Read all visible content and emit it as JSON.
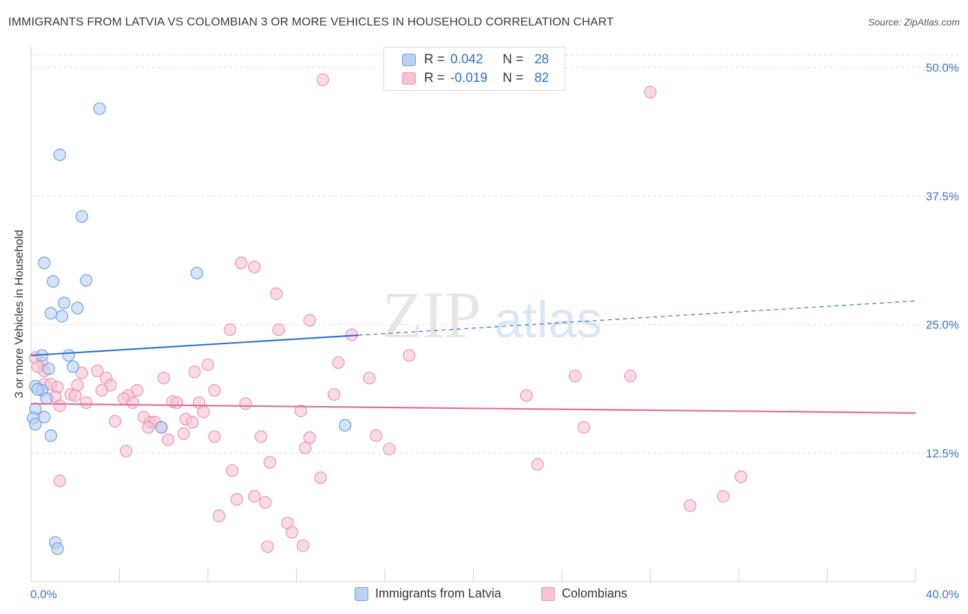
{
  "title": "IMMIGRANTS FROM LATVIA VS COLOMBIAN 3 OR MORE VEHICLES IN HOUSEHOLD CORRELATION CHART",
  "source": "Source: ZipAtlas.com",
  "watermark": {
    "zip": "ZIP",
    "atlas": "atlas"
  },
  "legend": {
    "rows": [
      {
        "r_label": "R =",
        "r_value": "0.042",
        "n_label": "N =",
        "n_value": "28"
      },
      {
        "r_label": "R =",
        "r_value": "-0.019",
        "n_label": "N =",
        "n_value": "82"
      }
    ]
  },
  "bottom_legend": {
    "series1": "Immigrants from Latvia",
    "series2": "Colombians"
  },
  "colors": {
    "blue_fill": "#b9d1f3",
    "blue_stroke": "#6f9ee0",
    "blue_line": "#2f6fce",
    "pink_fill": "#f7c3d3",
    "pink_stroke": "#e893ae",
    "pink_line": "#e06b97",
    "axis_text": "#3b74c6",
    "grid": "#dcdcdc"
  },
  "chart_data": {
    "type": "scatter",
    "title": "IMMIGRANTS FROM LATVIA VS COLOMBIAN 3 OR MORE VEHICLES IN HOUSEHOLD CORRELATION CHART",
    "ylabel": "3 or more Vehicles in Household",
    "xlabel": "",
    "xlim": [
      0,
      40
    ],
    "ylim": [
      0,
      50
    ],
    "x_tick_labels": [
      "0.0%",
      "40.0%"
    ],
    "y_ticks": [
      12.5,
      25.0,
      37.5,
      50.0
    ],
    "y_tick_labels": [
      "12.5%",
      "25.0%",
      "37.5%",
      "50.0%"
    ],
    "grid": true,
    "series": [
      {
        "name": "Immigrants from Latvia",
        "r": 0.042,
        "n": 28,
        "trend": {
          "x_solid": [
            0,
            14.8
          ],
          "x_dashed": [
            14.8,
            40
          ],
          "y_at_0": 22.0,
          "y_at_40": 27.3
        },
        "points": [
          [
            3.1,
            46.0
          ],
          [
            1.3,
            41.5
          ],
          [
            2.3,
            35.5
          ],
          [
            0.6,
            31.0
          ],
          [
            7.5,
            30.0
          ],
          [
            1.0,
            29.2
          ],
          [
            2.5,
            29.3
          ],
          [
            1.5,
            27.1
          ],
          [
            2.1,
            26.6
          ],
          [
            0.9,
            26.1
          ],
          [
            1.4,
            25.8
          ],
          [
            1.7,
            22.0
          ],
          [
            0.5,
            22.0
          ],
          [
            0.8,
            20.7
          ],
          [
            1.9,
            20.9
          ],
          [
            0.2,
            19.0
          ],
          [
            0.5,
            18.6
          ],
          [
            0.3,
            18.7
          ],
          [
            0.7,
            17.8
          ],
          [
            0.2,
            16.8
          ],
          [
            0.6,
            16.0
          ],
          [
            0.1,
            15.9
          ],
          [
            0.2,
            15.3
          ],
          [
            0.9,
            14.2
          ],
          [
            5.9,
            15.0
          ],
          [
            14.2,
            15.2
          ],
          [
            1.1,
            3.8
          ],
          [
            1.2,
            3.2
          ]
        ]
      },
      {
        "name": "Colombians",
        "r": -0.019,
        "n": 82,
        "trend": {
          "y_at_0": 17.3,
          "y_at_40": 16.4
        },
        "points": [
          [
            13.2,
            48.8
          ],
          [
            28.0,
            47.6
          ],
          [
            9.5,
            31.0
          ],
          [
            10.1,
            30.6
          ],
          [
            11.1,
            28.0
          ],
          [
            12.6,
            25.4
          ],
          [
            9.0,
            24.5
          ],
          [
            11.2,
            24.5
          ],
          [
            14.5,
            24.0
          ],
          [
            17.1,
            22.0
          ],
          [
            13.9,
            21.3
          ],
          [
            8.0,
            21.1
          ],
          [
            3.0,
            20.5
          ],
          [
            2.3,
            20.3
          ],
          [
            7.4,
            20.4
          ],
          [
            6.0,
            19.8
          ],
          [
            15.3,
            19.8
          ],
          [
            24.6,
            20.0
          ],
          [
            27.1,
            20.0
          ],
          [
            0.5,
            21.3
          ],
          [
            3.4,
            19.8
          ],
          [
            0.6,
            19.2
          ],
          [
            0.9,
            19.2
          ],
          [
            2.1,
            19.1
          ],
          [
            3.6,
            19.1
          ],
          [
            1.2,
            18.9
          ],
          [
            3.2,
            18.6
          ],
          [
            4.8,
            18.6
          ],
          [
            8.3,
            18.6
          ],
          [
            1.8,
            18.2
          ],
          [
            2.0,
            18.1
          ],
          [
            4.4,
            18.1
          ],
          [
            1.1,
            18.0
          ],
          [
            13.7,
            18.2
          ],
          [
            22.4,
            18.1
          ],
          [
            4.2,
            17.8
          ],
          [
            6.4,
            17.5
          ],
          [
            6.6,
            17.4
          ],
          [
            4.6,
            17.4
          ],
          [
            2.5,
            17.4
          ],
          [
            7.6,
            17.4
          ],
          [
            9.7,
            17.3
          ],
          [
            1.3,
            17.1
          ],
          [
            12.2,
            16.6
          ],
          [
            7.8,
            16.5
          ],
          [
            5.1,
            16.0
          ],
          [
            7.0,
            15.8
          ],
          [
            3.8,
            15.6
          ],
          [
            5.4,
            15.5
          ],
          [
            5.6,
            15.5
          ],
          [
            7.3,
            15.5
          ],
          [
            5.3,
            15.0
          ],
          [
            5.9,
            15.0
          ],
          [
            25.0,
            15.0
          ],
          [
            6.9,
            14.4
          ],
          [
            8.3,
            14.1
          ],
          [
            10.4,
            14.1
          ],
          [
            12.6,
            14.0
          ],
          [
            15.6,
            14.2
          ],
          [
            6.2,
            13.8
          ],
          [
            12.4,
            13.0
          ],
          [
            16.2,
            12.9
          ],
          [
            4.3,
            12.7
          ],
          [
            10.8,
            11.6
          ],
          [
            22.9,
            11.4
          ],
          [
            9.1,
            10.8
          ],
          [
            13.1,
            10.1
          ],
          [
            32.1,
            10.2
          ],
          [
            1.3,
            9.8
          ],
          [
            10.1,
            8.3
          ],
          [
            9.3,
            8.0
          ],
          [
            10.6,
            7.7
          ],
          [
            31.3,
            8.3
          ],
          [
            29.8,
            7.4
          ],
          [
            8.5,
            6.4
          ],
          [
            11.6,
            5.7
          ],
          [
            11.8,
            4.8
          ],
          [
            10.7,
            3.4
          ],
          [
            12.3,
            3.5
          ],
          [
            0.2,
            21.8
          ],
          [
            0.6,
            20.5
          ],
          [
            0.3,
            20.9
          ]
        ]
      }
    ]
  }
}
